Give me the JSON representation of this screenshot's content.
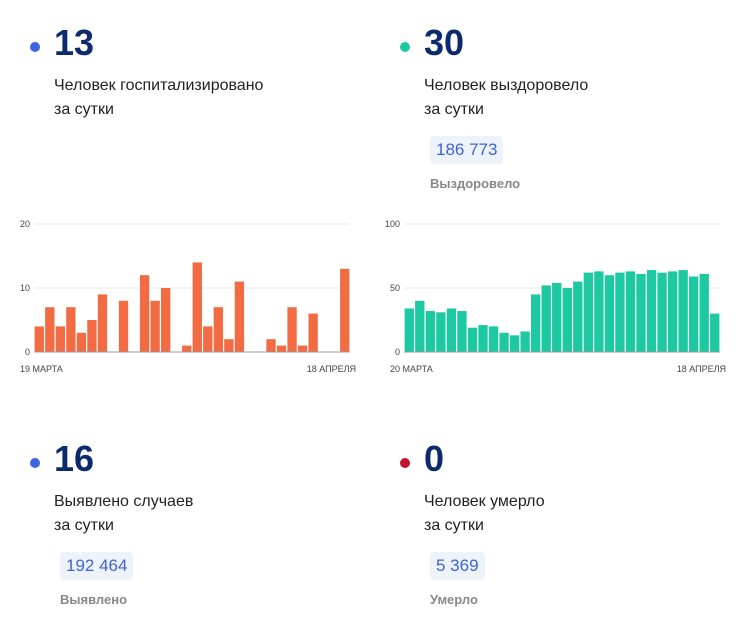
{
  "stats": {
    "hospitalized": {
      "value": "13",
      "line1": "Человек госпитализировано",
      "line2": "за сутки",
      "dot_color": "#3f63e8"
    },
    "recovered": {
      "value": "30",
      "line1": "Человек выздоровело",
      "line2": "за сутки",
      "total": "186 773",
      "total_label": "Выздоровело",
      "dot_color": "#1cc9a0"
    },
    "detected": {
      "value": "16",
      "line1": "Выявлено случаев",
      "line2": "за сутки",
      "total": "192 464",
      "total_label": "Выявлено",
      "dot_color": "#3f63e8"
    },
    "died": {
      "value": "0",
      "line1": "Человек умерло",
      "line2": "за сутки",
      "total": "5 369",
      "total_label": "Умерло",
      "dot_color": "#c8102e"
    }
  },
  "chart_data": [
    {
      "type": "bar",
      "color": "#f26b43",
      "ylim": [
        0,
        20
      ],
      "yticks": [
        "0",
        "10",
        "20"
      ],
      "x_start_label": "19 МАРТА",
      "x_end_label": "18 АПРЕЛЯ",
      "values": [
        4,
        7,
        4,
        7,
        3,
        5,
        9,
        0,
        8,
        0,
        12,
        8,
        10,
        0,
        1,
        14,
        4,
        7,
        2,
        11,
        0,
        0,
        2,
        1,
        7,
        1,
        6,
        0,
        0,
        13
      ]
    },
    {
      "type": "bar",
      "color": "#1cc9a0",
      "ylim": [
        0,
        100
      ],
      "yticks": [
        "0",
        "50",
        "100"
      ],
      "x_start_label": "20 МАРТА",
      "x_end_label": "18 АПРЕЛЯ",
      "values": [
        34,
        40,
        32,
        31,
        34,
        32,
        19,
        21,
        20,
        15,
        13,
        16,
        45,
        52,
        54,
        50,
        55,
        62,
        63,
        60,
        62,
        63,
        61,
        64,
        62,
        63,
        64,
        59,
        61,
        30
      ]
    }
  ]
}
